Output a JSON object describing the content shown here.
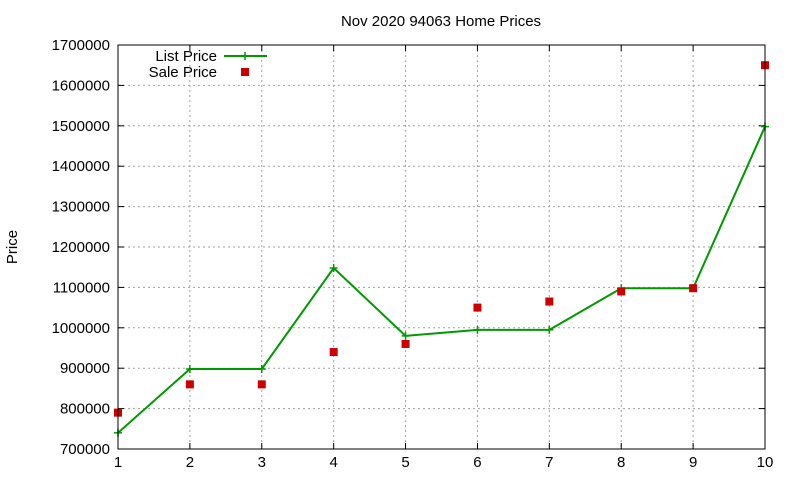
{
  "chart_data": {
    "type": "line",
    "title": "Nov 2020 94063 Home Prices",
    "xlabel": "",
    "ylabel": "Price",
    "xlim": [
      1,
      10
    ],
    "ylim": [
      700000,
      1700000
    ],
    "x_ticks": [
      "1",
      "2",
      "3",
      "4",
      "5",
      "6",
      "7",
      "8",
      "9",
      "10"
    ],
    "y_ticks": [
      "700000",
      "800000",
      "900000",
      "1000000",
      "1100000",
      "1200000",
      "1300000",
      "1400000",
      "1500000",
      "1600000",
      "1700000"
    ],
    "grid": true,
    "legend_position": "top-left",
    "series": [
      {
        "name": "List Price",
        "style": "line-with-plus-markers",
        "color": "#009900",
        "x": [
          1,
          2,
          3,
          4,
          5,
          6,
          7,
          8,
          9,
          10
        ],
        "values": [
          740000,
          898000,
          898000,
          1148000,
          980000,
          995000,
          995000,
          1098000,
          1098000,
          1498000
        ]
      },
      {
        "name": "Sale Price",
        "style": "square-markers",
        "color": "#cc0000",
        "x": [
          1,
          2,
          3,
          4,
          5,
          6,
          7,
          8,
          9,
          10
        ],
        "values": [
          790000,
          860000,
          860000,
          940000,
          960000,
          1050000,
          1065000,
          1090000,
          1098000,
          1650000
        ]
      }
    ]
  }
}
